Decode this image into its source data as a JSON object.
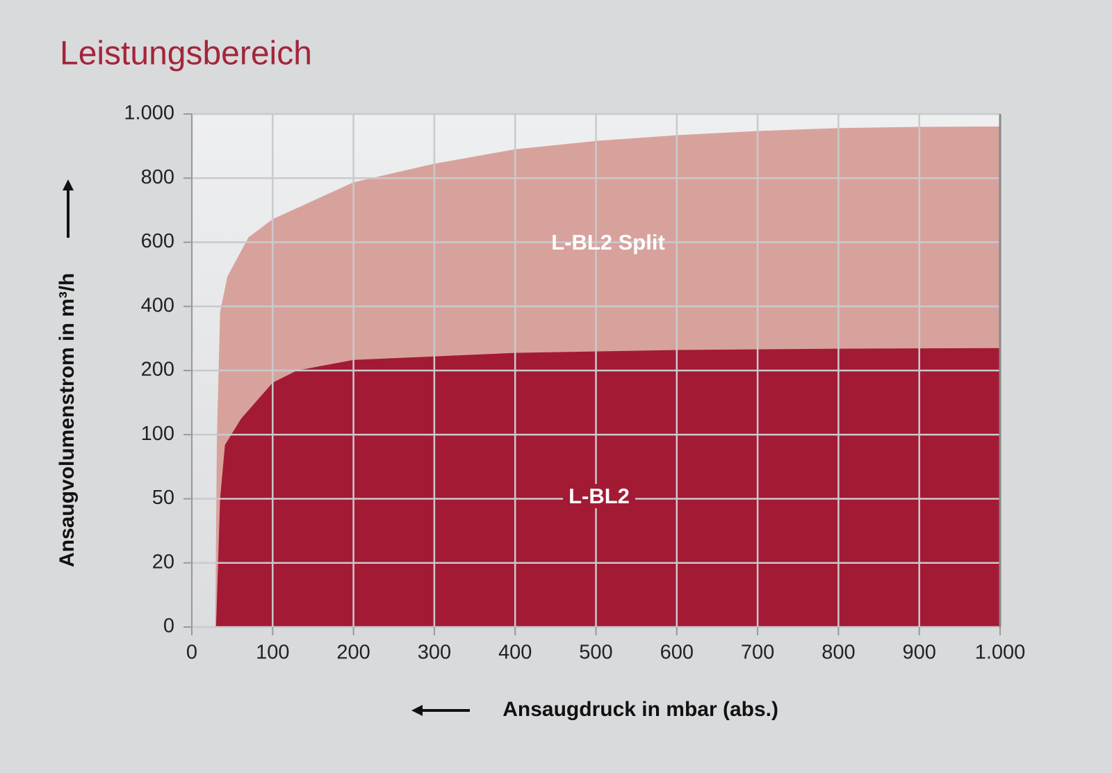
{
  "chart_data": {
    "type": "area",
    "title": "Leistungsbereich",
    "x_label": "Ansaugdruck in mbar (abs.)",
    "y_label": "Ansaugvolumenstrom in m³/h",
    "series": [
      {
        "name": "L-BL2 Split",
        "color": "#d8a29c",
        "x": [
          29,
          31,
          35,
          44,
          70,
          100,
          200,
          300,
          400,
          500,
          600,
          700,
          800,
          900,
          1000
        ],
        "values": [
          0,
          96,
          383,
          493,
          615,
          672,
          787,
          845,
          890,
          916,
          934,
          947,
          956,
          960,
          961
        ]
      },
      {
        "name": "L-BL2",
        "color": "#a31a35",
        "x": [
          30,
          35,
          41,
          61,
          100,
          130,
          200,
          400,
          600,
          800,
          1000
        ],
        "values": [
          0,
          50,
          92,
          125,
          181,
          200,
          233,
          255,
          264,
          268,
          270
        ]
      }
    ],
    "xlim": [
      0,
      1000
    ],
    "xticks": [
      0,
      100,
      200,
      300,
      400,
      500,
      600,
      700,
      800,
      900,
      {
        "value": 1000,
        "label": "1.000"
      }
    ],
    "ylim": [
      0,
      1000
    ],
    "yticks": [
      0,
      20,
      50,
      100,
      200,
      400,
      600,
      800,
      {
        "value": 1000,
        "label": "1.000"
      }
    ],
    "grid": true
  }
}
